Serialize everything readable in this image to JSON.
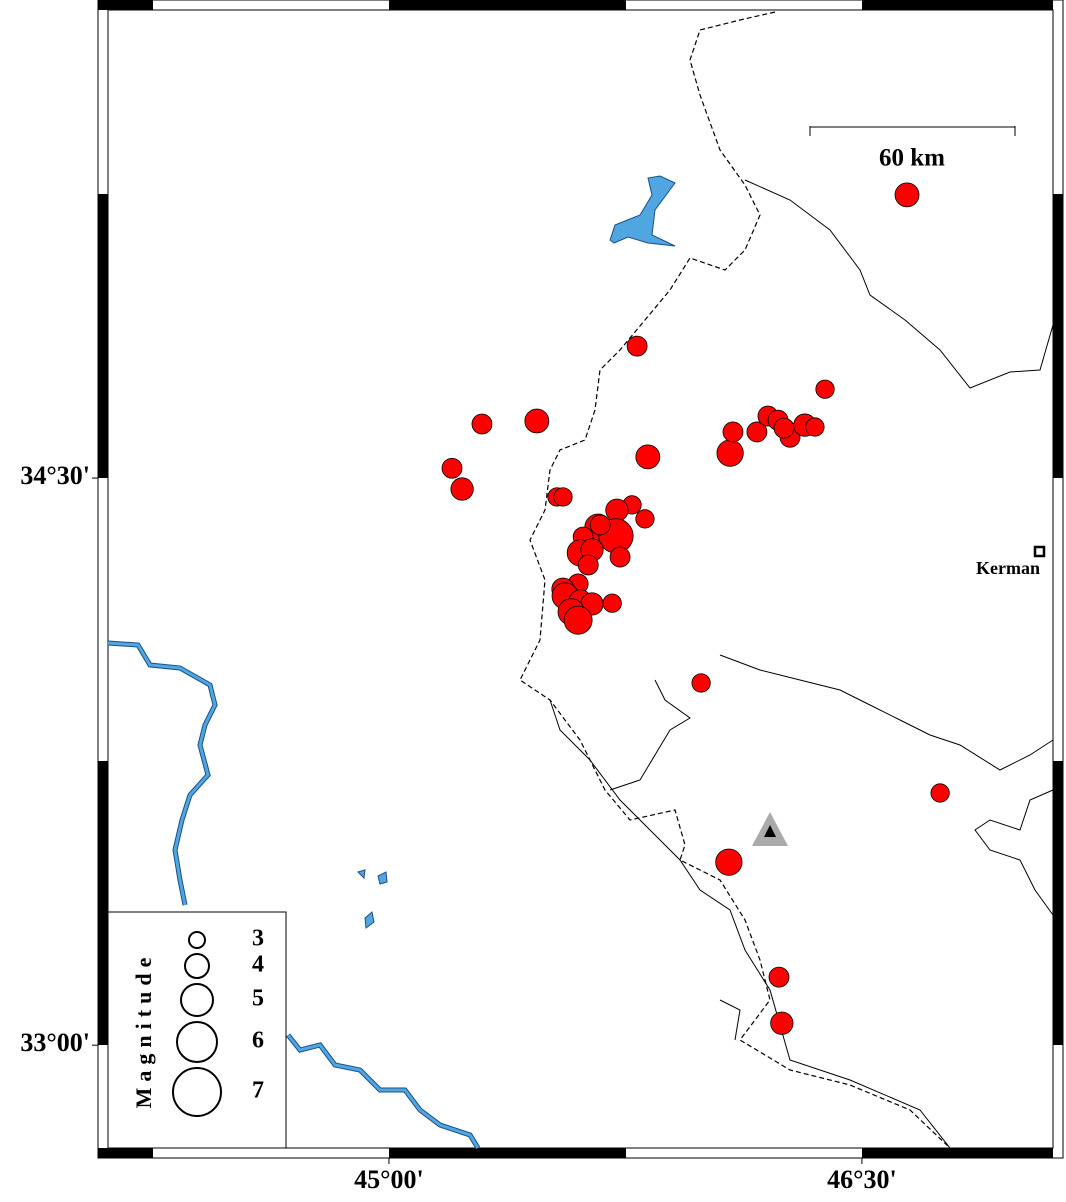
{
  "chart_data": {
    "type": "scatter",
    "xlim": [
      44.109,
      47.106
    ],
    "ylim": [
      32.728,
      35.738
    ],
    "xticks": [
      {
        "value": 45,
        "label": "45°00'"
      },
      {
        "value": 46.5,
        "label": "46°30'"
      }
    ],
    "yticks": [
      {
        "value": 34.5,
        "label": "34°30'"
      },
      {
        "value": 33,
        "label": "33°00'"
      }
    ],
    "scale_label": "60 km",
    "station": "Kerman",
    "color": "#ff0000",
    "legend": {
      "title": "Magnitude",
      "sizes": [
        3,
        4,
        5,
        6,
        7
      ]
    },
    "points": {
      "lon": [
        46.643,
        45.787,
        46.383,
        45.295,
        45.469,
        45.2,
        45.232,
        45.821,
        46.082,
        46.091,
        46.167,
        46.202,
        46.234,
        46.272,
        46.319,
        46.351,
        46.253,
        45.533,
        45.552,
        45.771,
        45.812,
        45.723,
        45.663,
        45.72,
        45.616,
        45.607,
        45.644,
        45.733,
        45.632,
        45.6,
        45.552,
        45.559,
        45.607,
        45.644,
        45.578,
        45.6,
        45.708,
        45.67,
        45.99,
        46.748,
        46.078,
        46.237,
        46.246
      ],
      "lat": [
        35.249,
        34.849,
        34.735,
        34.643,
        34.651,
        34.526,
        34.471,
        34.556,
        34.566,
        34.622,
        34.622,
        34.664,
        34.653,
        34.608,
        34.64,
        34.635,
        34.632,
        34.45,
        34.45,
        34.429,
        34.392,
        34.415,
        34.37,
        34.347,
        34.344,
        34.302,
        34.31,
        34.291,
        34.27,
        34.22,
        34.206,
        34.188,
        34.175,
        34.167,
        34.146,
        34.124,
        34.169,
        34.376,
        33.958,
        33.667,
        33.484,
        33.18,
        33.058
      ],
      "magnitude": [
        4.0,
        3.5,
        3.3,
        3.5,
        4.0,
        3.5,
        3.8,
        4.0,
        4.3,
        3.5,
        3.5,
        3.5,
        3.5,
        3.5,
        3.8,
        3.3,
        3.5,
        3.3,
        3.3,
        3.3,
        3.3,
        3.8,
        4.3,
        5.3,
        3.5,
        4.3,
        3.8,
        3.5,
        3.5,
        3.5,
        3.8,
        4.3,
        3.8,
        3.8,
        4.3,
        4.5,
        3.3,
        3.5,
        3.3,
        3.3,
        4.3,
        3.5,
        3.8
      ]
    }
  }
}
